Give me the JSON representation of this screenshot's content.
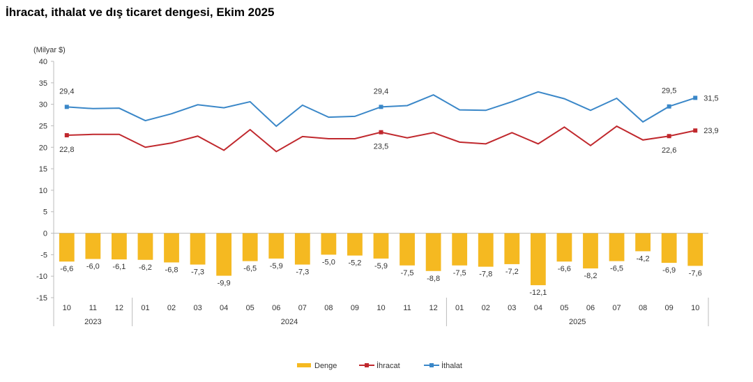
{
  "chart_data": {
    "type": "bar+line",
    "title": "İhracat, ithalat ve dış ticaret dengesi, Ekim 2025",
    "ylabel": "(Milyar $)",
    "ylim": [
      -15,
      40
    ],
    "yticks": [
      40,
      35,
      30,
      25,
      20,
      15,
      10,
      5,
      0,
      -5,
      -10,
      -15
    ],
    "categories": [
      "10",
      "11",
      "12",
      "01",
      "02",
      "03",
      "04",
      "05",
      "06",
      "07",
      "08",
      "09",
      "10",
      "11",
      "12",
      "01",
      "02",
      "03",
      "04",
      "05",
      "06",
      "07",
      "08",
      "09",
      "10"
    ],
    "years": [
      {
        "label": "2023",
        "count": 3
      },
      {
        "label": "2024",
        "count": 12
      },
      {
        "label": "2025",
        "count": 10
      }
    ],
    "legend_position": "bottom",
    "grid": false,
    "series": [
      {
        "name": "Denge",
        "type": "bar",
        "color": "#F5B921",
        "values": [
          -6.6,
          -6.0,
          -6.1,
          -6.2,
          -6.8,
          -7.3,
          -9.9,
          -6.5,
          -5.9,
          -7.3,
          -5.0,
          -5.2,
          -5.9,
          -7.5,
          -8.8,
          -7.5,
          -7.8,
          -7.2,
          -12.1,
          -6.6,
          -8.2,
          -6.5,
          -4.2,
          -6.9,
          -7.6
        ],
        "labels": [
          "-6,6",
          "-6,0",
          "-6,1",
          "-6,2",
          "-6,8",
          "-7,3",
          "-9,9",
          "-6,5",
          "-5,9",
          "-7,3",
          "-5,0",
          "-5,2",
          "-5,9",
          "-7,5",
          "-8,8",
          "-7,5",
          "-7,8",
          "-7,2",
          "-12,1",
          "-6,6",
          "-8,2",
          "-6,5",
          "-4,2",
          "-6,9",
          "-7,6"
        ]
      },
      {
        "name": "İhracat",
        "type": "line",
        "color": "#C0282D",
        "values": [
          22.8,
          23.0,
          23.0,
          20.0,
          21.0,
          22.6,
          19.3,
          24.1,
          19.0,
          22.5,
          22.0,
          22.0,
          23.5,
          22.2,
          23.4,
          21.2,
          20.8,
          23.4,
          20.8,
          24.7,
          20.4,
          24.9,
          21.7,
          22.6,
          23.9
        ],
        "point_labels": {
          "0": "22,8",
          "12": "23,5",
          "23": "22,6",
          "24": "23,9"
        }
      },
      {
        "name": "İthalat",
        "type": "line",
        "color": "#3A87C8",
        "values": [
          29.4,
          29.0,
          29.1,
          26.2,
          27.8,
          29.9,
          29.2,
          30.6,
          24.9,
          29.8,
          27.0,
          27.2,
          29.4,
          29.7,
          32.2,
          28.7,
          28.6,
          30.6,
          32.9,
          31.3,
          28.6,
          31.4,
          25.9,
          29.5,
          31.5
        ],
        "point_labels": {
          "0": "29,4",
          "12": "29,4",
          "23": "29,5",
          "24": "31,5"
        }
      }
    ]
  }
}
